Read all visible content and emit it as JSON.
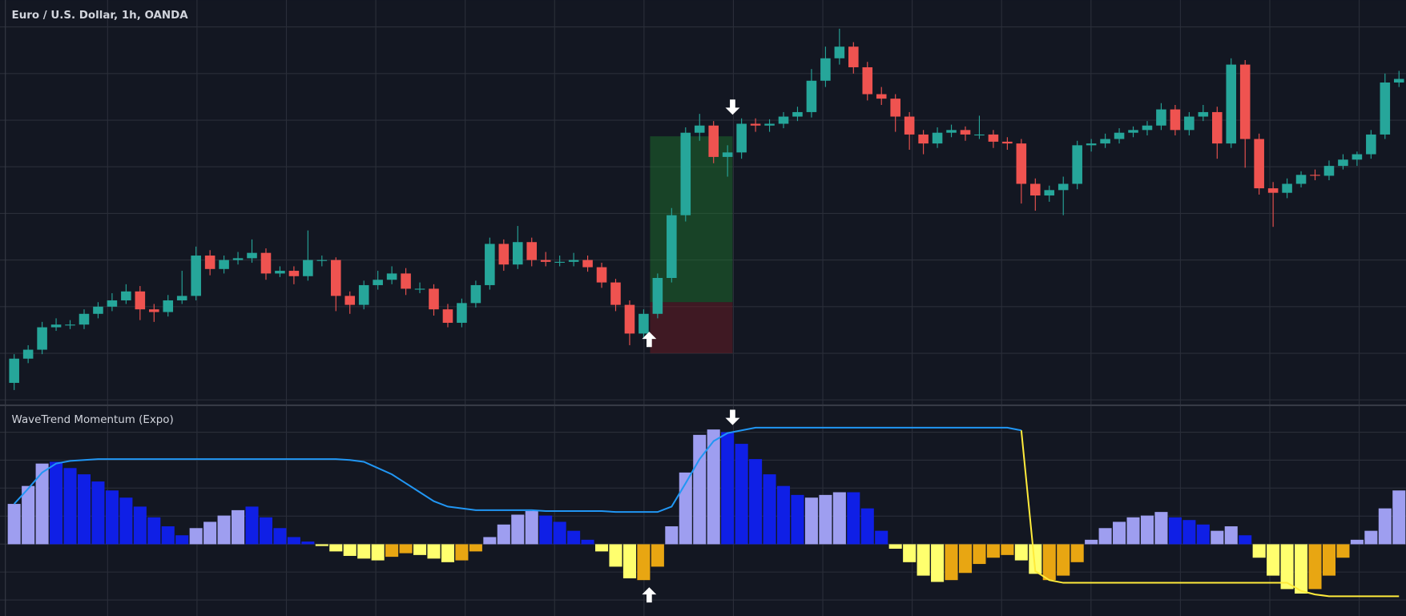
{
  "chart_data": [
    {
      "type": "candlestick",
      "title": "Euro / U.S. Dollar, 1h, OANDA",
      "up_color": "#26a69a",
      "down_color": "#ef5350",
      "ylim": [
        0,
        442
      ],
      "candles": [
        [
          20,
          52,
          12,
          47
        ],
        [
          47,
          62,
          42,
          57
        ],
        [
          57,
          88,
          52,
          82
        ],
        [
          82,
          92,
          78,
          85
        ],
        [
          85,
          90,
          80,
          85
        ],
        [
          85,
          102,
          80,
          97
        ],
        [
          97,
          110,
          92,
          105
        ],
        [
          105,
          120,
          100,
          112
        ],
        [
          112,
          130,
          108,
          122
        ],
        [
          122,
          128,
          90,
          102
        ],
        [
          102,
          108,
          88,
          99
        ],
        [
          99,
          118,
          94,
          112
        ],
        [
          112,
          145,
          108,
          117
        ],
        [
          117,
          172,
          112,
          162
        ],
        [
          162,
          168,
          140,
          147
        ],
        [
          147,
          162,
          142,
          157
        ],
        [
          157,
          166,
          152,
          159
        ],
        [
          159,
          180,
          154,
          165
        ],
        [
          165,
          170,
          135,
          142
        ],
        [
          142,
          150,
          138,
          145
        ],
        [
          145,
          150,
          130,
          139
        ],
        [
          139,
          190,
          134,
          157
        ],
        [
          157,
          162,
          150,
          157
        ],
        [
          157,
          160,
          100,
          117
        ],
        [
          117,
          122,
          97,
          107
        ],
        [
          107,
          134,
          102,
          129
        ],
        [
          129,
          145,
          124,
          135
        ],
        [
          135,
          150,
          130,
          142
        ],
        [
          142,
          148,
          118,
          125
        ],
        [
          125,
          132,
          120,
          125
        ],
        [
          125,
          130,
          95,
          102
        ],
        [
          102,
          108,
          82,
          87
        ],
        [
          87,
          114,
          82,
          109
        ],
        [
          109,
          134,
          104,
          129
        ],
        [
          129,
          182,
          124,
          175
        ],
        [
          175,
          180,
          145,
          152
        ],
        [
          152,
          195,
          147,
          177
        ],
        [
          177,
          182,
          150,
          157
        ],
        [
          157,
          166,
          150,
          155
        ],
        [
          155,
          162,
          150,
          155
        ],
        [
          155,
          165,
          150,
          157
        ],
        [
          157,
          162,
          144,
          149
        ],
        [
          149,
          154,
          126,
          132
        ],
        [
          132,
          136,
          100,
          107
        ],
        [
          107,
          112,
          62,
          75
        ],
        [
          75,
          102,
          70,
          97
        ],
        [
          97,
          142,
          92,
          137
        ],
        [
          137,
          215,
          132,
          207
        ],
        [
          207,
          305,
          200,
          299
        ],
        [
          299,
          320,
          290,
          307
        ],
        [
          307,
          312,
          265,
          272
        ],
        [
          272,
          285,
          250,
          277
        ],
        [
          277,
          315,
          270,
          309
        ],
        [
          309,
          315,
          300,
          307
        ],
        [
          307,
          314,
          300,
          309
        ],
        [
          309,
          322,
          304,
          317
        ],
        [
          317,
          328,
          312,
          322
        ],
        [
          322,
          370,
          316,
          357
        ],
        [
          357,
          395,
          350,
          382
        ],
        [
          382,
          415,
          375,
          395
        ],
        [
          395,
          400,
          365,
          372
        ],
        [
          372,
          378,
          335,
          342
        ],
        [
          342,
          350,
          330,
          337
        ],
        [
          337,
          342,
          300,
          317
        ],
        [
          317,
          322,
          280,
          297
        ],
        [
          297,
          302,
          275,
          287
        ],
        [
          287,
          305,
          282,
          299
        ],
        [
          299,
          308,
          294,
          302
        ],
        [
          302,
          306,
          290,
          297
        ],
        [
          297,
          318,
          292,
          297
        ],
        [
          297,
          302,
          282,
          289
        ],
        [
          289,
          294,
          280,
          287
        ],
        [
          287,
          292,
          220,
          242
        ],
        [
          242,
          248,
          212,
          229
        ],
        [
          229,
          240,
          222,
          235
        ],
        [
          235,
          250,
          207,
          242
        ],
        [
          242,
          290,
          236,
          285
        ],
        [
          285,
          292,
          278,
          287
        ],
        [
          287,
          298,
          282,
          292
        ],
        [
          292,
          304,
          287,
          299
        ],
        [
          299,
          306,
          294,
          302
        ],
        [
          302,
          312,
          296,
          307
        ],
        [
          307,
          332,
          302,
          325
        ],
        [
          325,
          330,
          296,
          302
        ],
        [
          302,
          322,
          296,
          317
        ],
        [
          317,
          330,
          312,
          322
        ],
        [
          322,
          328,
          270,
          287
        ],
        [
          287,
          382,
          282,
          375
        ],
        [
          375,
          380,
          260,
          292
        ],
        [
          292,
          298,
          230,
          237
        ],
        [
          237,
          244,
          194,
          232
        ],
        [
          232,
          248,
          226,
          242
        ],
        [
          242,
          256,
          238,
          252
        ],
        [
          252,
          258,
          246,
          251
        ],
        [
          251,
          268,
          246,
          262
        ],
        [
          262,
          275,
          258,
          269
        ],
        [
          269,
          278,
          262,
          275
        ],
        [
          275,
          302,
          270,
          297
        ],
        [
          297,
          365,
          292,
          355
        ],
        [
          355,
          368,
          350,
          359
        ]
      ]
    },
    {
      "type": "histogram",
      "title": "WaveTrend Momentum (Expo)",
      "ylim": [
        -80,
        152
      ],
      "values": [
        45,
        65,
        90,
        92,
        85,
        78,
        70,
        60,
        52,
        42,
        30,
        20,
        10,
        18,
        25,
        32,
        38,
        42,
        30,
        18,
        8,
        3,
        -2,
        -8,
        -13,
        -16,
        -18,
        -14,
        -10,
        -12,
        -16,
        -20,
        -18,
        -8,
        8,
        22,
        33,
        37,
        32,
        25,
        15,
        5,
        -8,
        -25,
        -38,
        -40,
        -25,
        20,
        80,
        122,
        128,
        125,
        112,
        95,
        78,
        65,
        55,
        52,
        55,
        58,
        58,
        40,
        15,
        -5,
        -20,
        -35,
        -42,
        -40,
        -32,
        -22,
        -15,
        -12,
        -18,
        -33,
        -40,
        -35,
        -20,
        5,
        18,
        25,
        30,
        32,
        36,
        30,
        27,
        22,
        15,
        20,
        10,
        -15,
        -35,
        -50,
        -55,
        -50,
        -35,
        -15,
        5,
        15,
        40,
        60
      ],
      "colors": [
        "#9e9ef0",
        "#9e9ef0",
        "#9e9ef0",
        "#0f1fe6",
        "#0f1fe6",
        "#0f1fe6",
        "#0f1fe6",
        "#0f1fe6",
        "#0f1fe6",
        "#0f1fe6",
        "#0f1fe6",
        "#0f1fe6",
        "#0f1fe6",
        "#9e9ef0",
        "#9e9ef0",
        "#9e9ef0",
        "#9e9ef0",
        "#0f1fe6",
        "#0f1fe6",
        "#0f1fe6",
        "#0f1fe6",
        "#0f1fe6",
        "#ffff6e",
        "#ffff6e",
        "#ffff6e",
        "#ffff6e",
        "#ffff6e",
        "#e8a612",
        "#e8a612",
        "#ffff6e",
        "#ffff6e",
        "#ffff6e",
        "#e8a612",
        "#e8a612",
        "#9e9ef0",
        "#9e9ef0",
        "#9e9ef0",
        "#9e9ef0",
        "#0f1fe6",
        "#0f1fe6",
        "#0f1fe6",
        "#0f1fe6",
        "#ffff6e",
        "#ffff6e",
        "#ffff6e",
        "#e8a612",
        "#e8a612",
        "#9e9ef0",
        "#9e9ef0",
        "#9e9ef0",
        "#9e9ef0",
        "#0f1fe6",
        "#0f1fe6",
        "#0f1fe6",
        "#0f1fe6",
        "#0f1fe6",
        "#0f1fe6",
        "#9e9ef0",
        "#9e9ef0",
        "#9e9ef0",
        "#0f1fe6",
        "#0f1fe6",
        "#0f1fe6",
        "#ffff6e",
        "#ffff6e",
        "#ffff6e",
        "#ffff6e",
        "#e8a612",
        "#e8a612",
        "#e8a612",
        "#e8a612",
        "#e8a612",
        "#ffff6e",
        "#ffff6e",
        "#e8a612",
        "#e8a612",
        "#e8a612",
        "#9e9ef0",
        "#9e9ef0",
        "#9e9ef0",
        "#9e9ef0",
        "#9e9ef0",
        "#9e9ef0",
        "#0f1fe6",
        "#0f1fe6",
        "#0f1fe6",
        "#9e9ef0",
        "#9e9ef0",
        "#0f1fe6",
        "#ffff6e",
        "#ffff6e",
        "#ffff6e",
        "#ffff6e",
        "#e8a612",
        "#e8a612",
        "#e8a612",
        "#9e9ef0",
        "#9e9ef0",
        "#9e9ef0",
        "#9e9ef0"
      ],
      "series": [
        {
          "color": "#2196f3",
          "values": [
            45,
            62,
            80,
            90,
            93,
            94,
            95,
            95,
            95,
            95,
            95,
            95,
            95,
            95,
            95,
            95,
            95,
            95,
            95,
            95,
            95,
            95,
            95,
            95,
            94,
            92,
            85,
            78,
            68,
            58,
            48,
            42,
            40,
            38,
            38,
            38,
            38,
            38,
            37,
            37,
            37,
            37,
            37,
            36,
            36,
            36,
            36,
            42,
            68,
            95,
            115,
            124,
            127,
            130,
            130,
            130,
            130,
            130,
            130,
            130,
            130,
            130,
            130,
            130,
            130,
            130,
            130,
            130,
            130,
            130,
            130,
            130,
            127,
            null,
            null,
            null,
            null,
            null,
            null,
            null,
            null,
            null,
            null,
            null,
            null,
            null,
            null,
            null,
            null,
            null,
            null,
            null,
            null,
            null,
            null,
            null,
            null,
            null,
            null,
            null
          ]
        },
        {
          "color": "#ffeb3b",
          "values": [
            null,
            null,
            null,
            null,
            null,
            null,
            null,
            null,
            null,
            null,
            null,
            null,
            null,
            null,
            null,
            null,
            null,
            null,
            null,
            null,
            null,
            null,
            null,
            null,
            null,
            null,
            null,
            null,
            null,
            null,
            null,
            null,
            null,
            null,
            null,
            null,
            null,
            null,
            null,
            null,
            null,
            null,
            null,
            null,
            null,
            null,
            null,
            null,
            null,
            null,
            null,
            null,
            null,
            null,
            null,
            null,
            null,
            null,
            null,
            null,
            null,
            null,
            null,
            null,
            null,
            null,
            null,
            null,
            null,
            null,
            null,
            null,
            127,
            -30,
            -40,
            -43,
            -43,
            -43,
            -43,
            -43,
            -43,
            -43,
            -43,
            -43,
            -43,
            -43,
            -43,
            -43,
            -43,
            -43,
            -43,
            -43,
            -52,
            -56,
            -58,
            -58,
            -58,
            -58,
            -58,
            -58
          ]
        }
      ]
    }
  ]
}
